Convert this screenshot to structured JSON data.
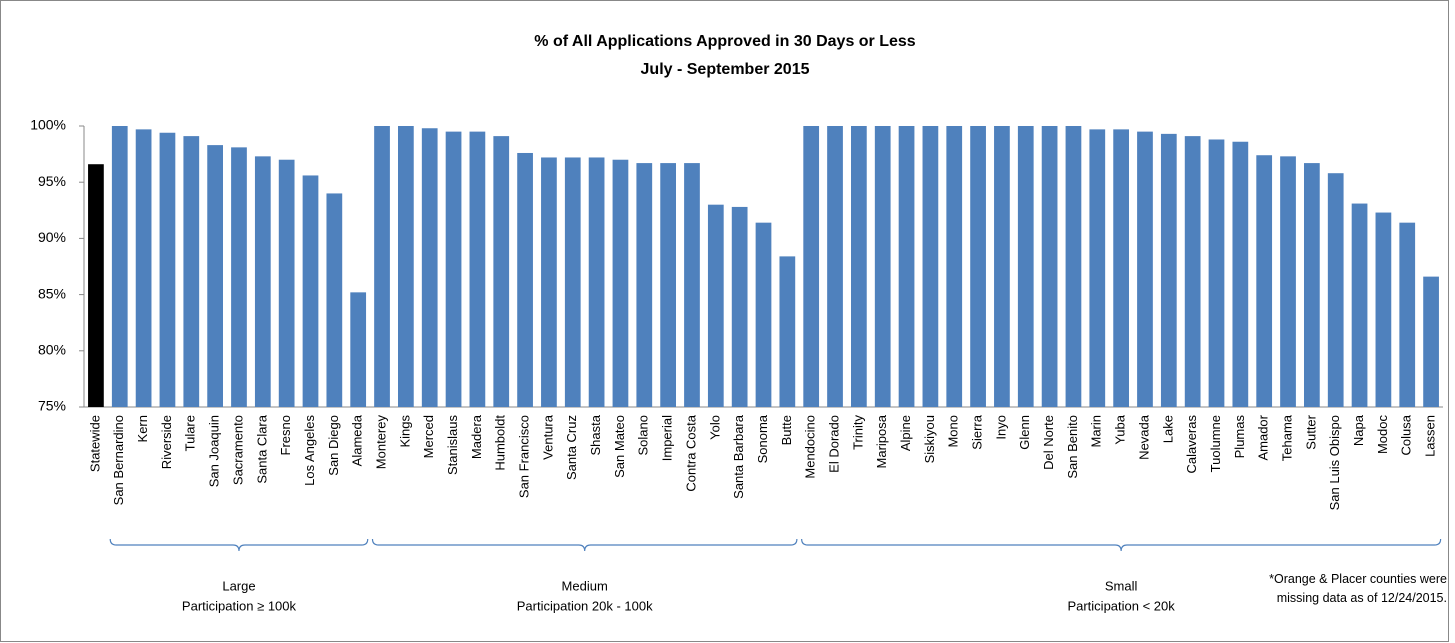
{
  "chart_data": {
    "type": "bar",
    "title": "% of All Applications Approved in 30 Days or Less",
    "subtitle": "July - September 2015",
    "categories": [
      "Statewide",
      "San Bernardino",
      "Kern",
      "Riverside",
      "Tulare",
      "San Joaquin",
      "Sacramento",
      "Santa Clara",
      "Fresno",
      "Los Angeles",
      "San Diego",
      "Alameda",
      "Monterey",
      "Kings",
      "Merced",
      "Stanislaus",
      "Madera",
      "Humboldt",
      "San Francisco",
      "Ventura",
      "Santa Cruz",
      "Shasta",
      "San Mateo",
      "Solano",
      "Imperial",
      "Contra Costa",
      "Yolo",
      "Santa Barbara",
      "Sonoma",
      "Butte",
      "Mendocino",
      "El Dorado",
      "Trinity",
      "Mariposa",
      "Alpine",
      "Siskiyou",
      "Mono",
      "Sierra",
      "Inyo",
      "Glenn",
      "Del Norte",
      "San Benito",
      "Marin",
      "Yuba",
      "Nevada",
      "Lake",
      "Calaveras",
      "Tuolumne",
      "Plumas",
      "Amador",
      "Tehama",
      "Sutter",
      "San Luis Obispo",
      "Napa",
      "Modoc",
      "Colusa",
      "Lassen"
    ],
    "values": [
      96.6,
      100,
      99.7,
      99.4,
      99.1,
      98.3,
      98.1,
      97.3,
      97.0,
      95.6,
      94.0,
      85.2,
      100,
      100,
      99.8,
      99.5,
      99.5,
      99.1,
      97.6,
      97.2,
      97.2,
      97.2,
      97.0,
      96.7,
      96.7,
      96.7,
      93.0,
      92.8,
      91.4,
      88.4,
      100,
      100,
      100,
      100,
      100,
      100,
      100,
      100,
      100,
      100,
      100,
      100,
      99.7,
      99.7,
      99.5,
      99.3,
      99.1,
      98.8,
      98.6,
      97.4,
      97.3,
      96.7,
      95.8,
      93.1,
      92.3,
      91.4,
      86.6
    ],
    "color": "#4f81bd",
    "highlight_index": 0,
    "highlight_color": "#000000",
    "ylim": [
      75,
      100
    ],
    "yticks": [
      {
        "value": 75,
        "label": "75%"
      },
      {
        "value": 80,
        "label": "80%"
      },
      {
        "value": 85,
        "label": "85%"
      },
      {
        "value": 90,
        "label": "90%"
      },
      {
        "value": 95,
        "label": "95%"
      },
      {
        "value": 100,
        "label": "100%"
      }
    ],
    "groups": [
      {
        "title": "Large",
        "label": "Participation ≥ 100k",
        "span": [
          1,
          11
        ]
      },
      {
        "title": "Medium",
        "label": "Participation 20k - 100k",
        "span": [
          12,
          29
        ]
      },
      {
        "title": "Small",
        "label": "Participation < 20k",
        "span": [
          30,
          56
        ]
      }
    ],
    "note": "*Orange & Placer counties were missing data as of 12/24/2015."
  }
}
